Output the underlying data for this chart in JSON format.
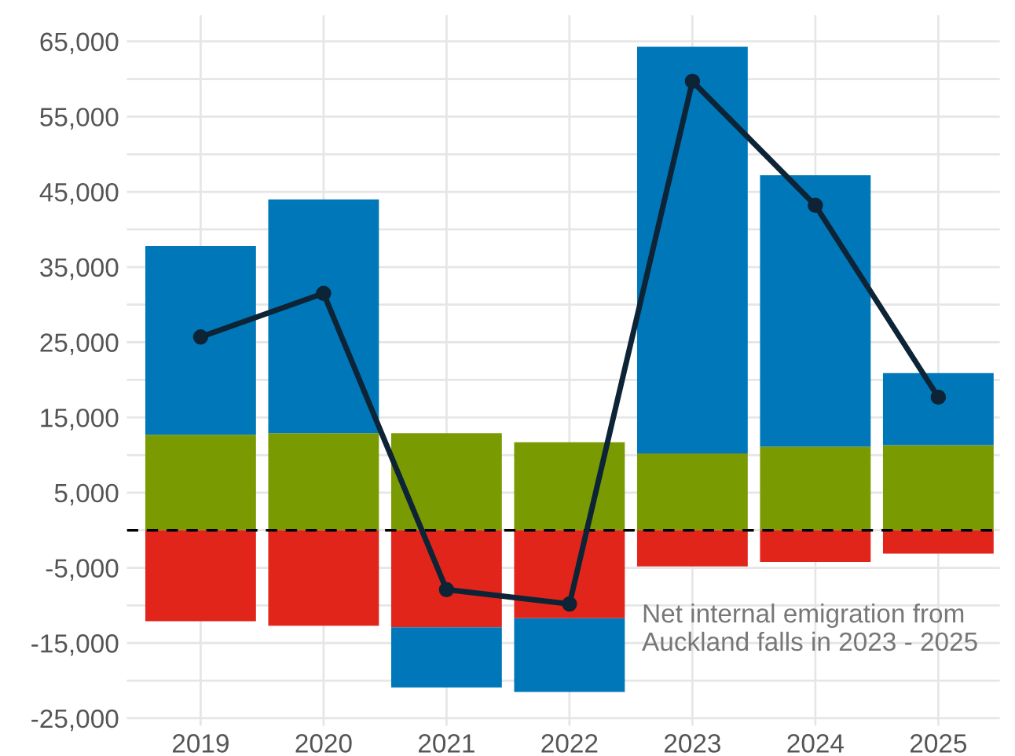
{
  "chart_data": {
    "type": "bar",
    "stacked": true,
    "categories": [
      "2019",
      "2020",
      "2021",
      "2022",
      "2023",
      "2024",
      "2025"
    ],
    "series": [
      {
        "color": "#7a9a01",
        "values": [
          12700,
          12900,
          12900,
          11700,
          10200,
          11100,
          11300
        ]
      },
      {
        "color": "#e1251b",
        "values": [
          -12100,
          -12700,
          -12900,
          -11700,
          -4800,
          -4200,
          -3100
        ]
      },
      {
        "color": "#0077b8",
        "values": [
          25100,
          31100,
          -8000,
          -9800,
          54100,
          36100,
          9600
        ]
      },
      {
        "type": "line",
        "color": "#0d2436",
        "marker": "circle",
        "values": [
          25700,
          31500,
          -7900,
          -9800,
          59700,
          43200,
          17700
        ]
      }
    ],
    "ylim": [
      -26000,
      68500
    ],
    "yticks": [
      {
        "value": -25000,
        "label": "-25,000"
      },
      {
        "value": -20000,
        "label": null
      },
      {
        "value": -15000,
        "label": "-15,000"
      },
      {
        "value": -10000,
        "label": null
      },
      {
        "value": -5000,
        "label": "-5,000"
      },
      {
        "value": 0,
        "label": null
      },
      {
        "value": 5000,
        "label": "5,000"
      },
      {
        "value": 10000,
        "label": null
      },
      {
        "value": 15000,
        "label": "15,000"
      },
      {
        "value": 20000,
        "label": null
      },
      {
        "value": 25000,
        "label": "25,000"
      },
      {
        "value": 30000,
        "label": null
      },
      {
        "value": 35000,
        "label": "35,000"
      },
      {
        "value": 40000,
        "label": null
      },
      {
        "value": 45000,
        "label": "45,000"
      },
      {
        "value": 50000,
        "label": null
      },
      {
        "value": 55000,
        "label": "55,000"
      },
      {
        "value": 60000,
        "label": null
      },
      {
        "value": 65000,
        "label": "65,000"
      }
    ],
    "grid": true,
    "ref_lines": [
      {
        "axis": "y",
        "value": 0,
        "color": "#000000",
        "line_style": "dashed"
      }
    ],
    "annotations": [
      "Net internal emigration from\nAuckland falls in 2023 - 2025"
    ]
  }
}
